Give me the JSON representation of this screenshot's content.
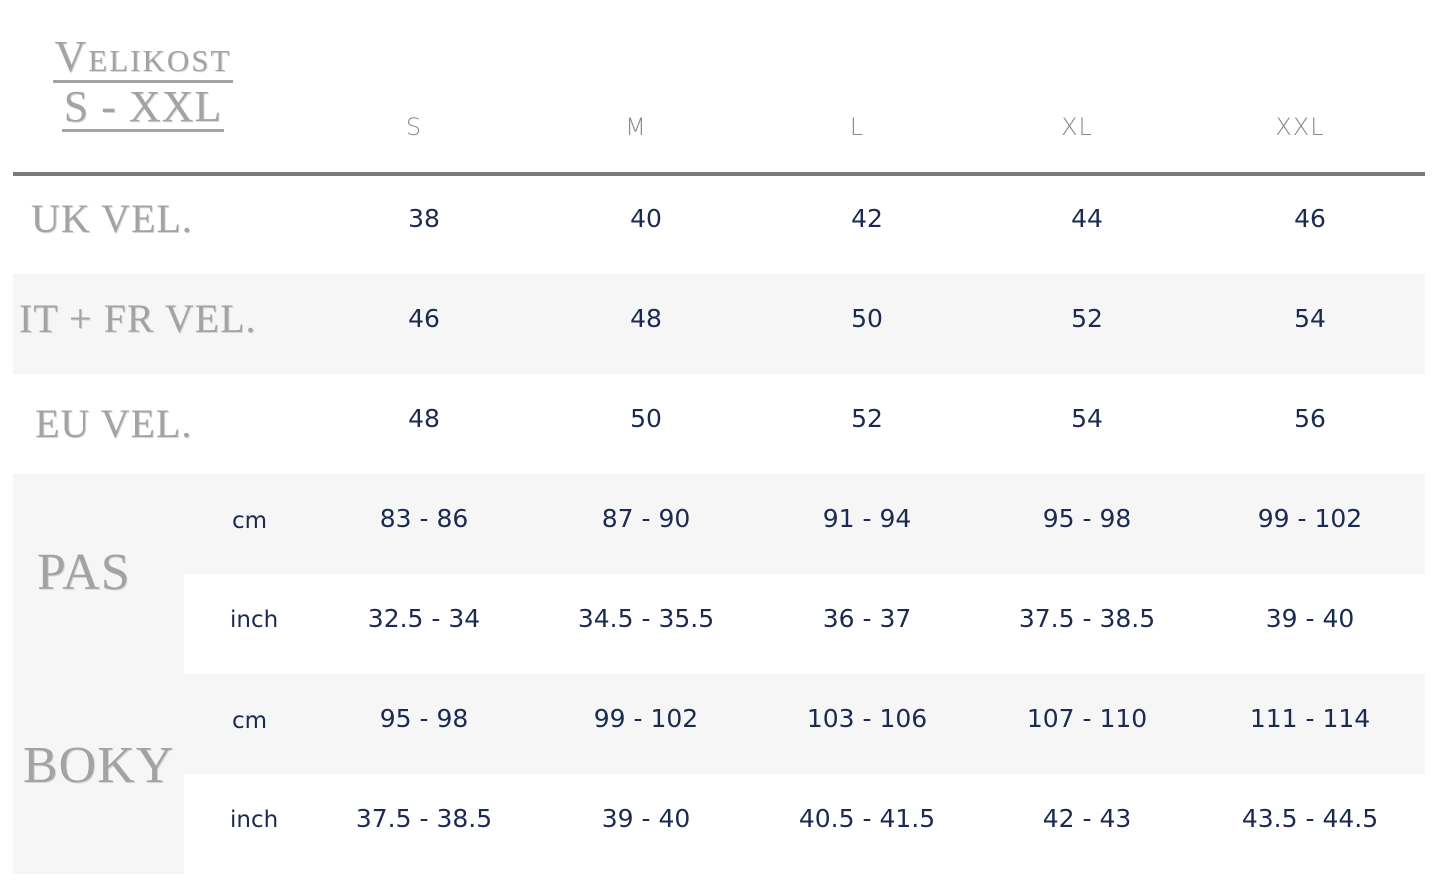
{
  "title": {
    "line1": "Velikost",
    "line2": "S - XXL"
  },
  "sizes": [
    "S",
    "M",
    "L",
    "XL",
    "XXL"
  ],
  "rows": {
    "uk": {
      "label": "UK VEL.",
      "values": [
        "38",
        "40",
        "42",
        "44",
        "46"
      ]
    },
    "itfr": {
      "label": "IT + FR VEL.",
      "values": [
        "46",
        "48",
        "50",
        "52",
        "54"
      ]
    },
    "eu": {
      "label": "EU VEL.",
      "values": [
        "48",
        "50",
        "52",
        "54",
        "56"
      ]
    }
  },
  "pas": {
    "label": "PAS",
    "cm": {
      "unit": "cm",
      "values": [
        "83 - 86",
        "87 - 90",
        "91 - 94",
        "95 - 98",
        "99 - 102"
      ]
    },
    "inch": {
      "unit": "inch",
      "values": [
        "32.5 - 34",
        "34.5 - 35.5",
        "36 - 37",
        "37.5 - 38.5",
        "39 - 40"
      ]
    }
  },
  "boky": {
    "label": "BOKY",
    "cm": {
      "unit": "cm",
      "values": [
        "95 - 98",
        "99 - 102",
        "103 - 106",
        "107 - 110",
        "111 - 114"
      ]
    },
    "inch": {
      "unit": "inch",
      "values": [
        "37.5 - 38.5",
        "39 - 40",
        "40.5 - 41.5",
        "42 - 43",
        "43.5 - 44.5"
      ]
    }
  }
}
